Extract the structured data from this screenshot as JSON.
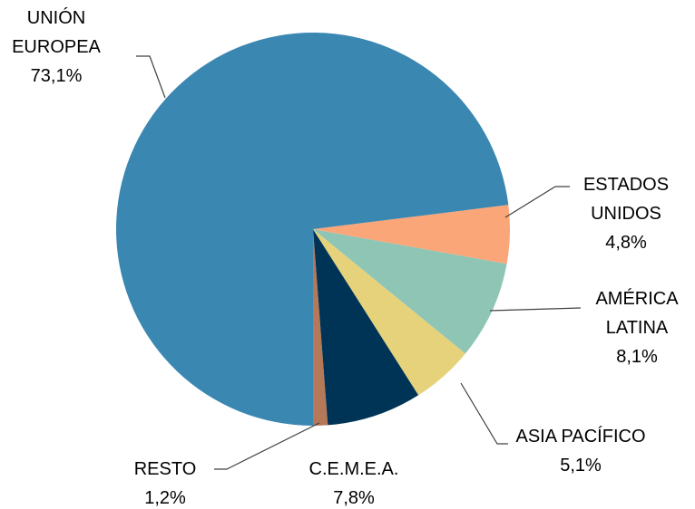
{
  "chart_data": {
    "type": "pie",
    "categories": [
      "UNIÓN EUROPEA",
      "ESTADOS UNIDOS",
      "AMÉRICA LATINA",
      "ASIA PACÍFICO",
      "C.E.M.E.A.",
      "RESTO"
    ],
    "values": [
      73.1,
      4.8,
      8.1,
      5.1,
      7.8,
      1.2
    ],
    "value_labels": [
      "73,1%",
      "4,8%",
      "8,1%",
      "5,1%",
      "7,8%",
      "1,2%"
    ],
    "colors": [
      "#3a87b2",
      "#fba679",
      "#8fc5b5",
      "#e6d27a",
      "#003456",
      "#b5795a"
    ]
  }
}
